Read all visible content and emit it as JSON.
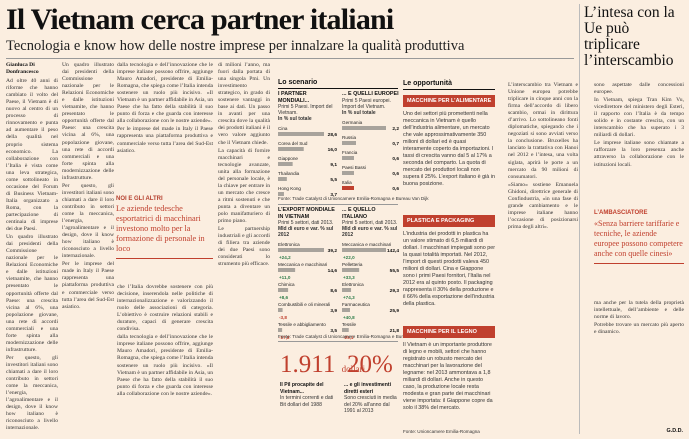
{
  "header": {
    "headline": "Il Vietnam cerca partner italiani",
    "subhead": "Tecnologia e know how delle nostre imprese per innalzare la qualità produttiva",
    "side_headline": "L’intesa con la Ue può triplicare l’interscambio"
  },
  "article": {
    "byline": "Gianluca Di Donfrancesco",
    "col1": [
      "Ad oltre 40 anni di riforme che hanno cambiato il volto del Paese, il Vietnam è di nuovo al centro di un processo di rinnovamento e punta ad aumentare il peso della qualità nel proprio sistema economico. La collaborazione con l’Italia è vista come una leva strategica, come sottolineato in occasione del Forum di Business Vietnam-Italia organizzato a Roma, con la partecipazione di centinaia di imprese dei due Paesi.",
      "Un quadro illustrato dai presidenti della Commissione nazionale per le Relazioni Economiche e dalle istituzioni vietnamite, che hanno presentato le opportunità offerte dal Paese: una crescita vicina al 6%, una popolazione giovane, una rete di accordi commerciali e una forte spinta alla modernizzazione delle infrastrutture.",
      "Per questo, gli investitori italiani sono chiamati a dare il loro contributo in settori come la meccanica, l’energia, l’agroalimentare e il design, dove il know how italiano è riconosciuto a livello internazionale."
    ],
    "col2": [
      "dalla tecnologia e dell’innovazione che le imprese italiane possono offrire, aggiunge Mauro Amadori, presidente di Emilia-Romagna, che spiega come l’Italia intenda sostenere un ruolo più incisivo. «Il Vietnam è un partner affidabile in Asia, un Paese che ha fatto della stabilità il suo punto di forza e che guarda con interesse alla collaborazione con le nostre aziende».",
      "Per le imprese del made in Italy il Paese rappresenta una piattaforma produttiva e commerciale verso tutta l’area del Sud-Est asiatico."
    ],
    "col3": [
      "di milioni l’anno, ma fuori dalla portata di una singola Pmi. Un investimento strategico, in grado di sostenere vantaggi in base ai dati. Un passo in avanti per una crescita dove la qualità dei prodotti italiani è il vero valore aggiunto che il Vietnam chiede.",
      "La capacità di fornire macchinari e tecnologie avanzate, unita alla formazione del personale locale, è la chiave per entrare in un mercato che cresce a ritmi sostenuti e che punta a diventare un polo manifatturiero di primo piano.",
      "Le partnership industriali e gli accordi di filiera tra aziende dei due Paesi sono considerati lo strumento più efficace."
    ],
    "quote_kicker": "NOI E GLI ALTRI",
    "quote": "Le aziende tedesche esportatrici di macchinari investono molto per la formazione di personale in loco",
    "col4": [
      "che l’Italia dovrebbe sostenere con più decisione, inserendola nelle politiche di internazionalizzazione e valorizzando il ruolo delle associazioni di categoria. L’obiettivo è costruire relazioni stabili e durature, capaci di generare crescita condivisa."
    ]
  },
  "scenario": {
    "title": "Lo scenario",
    "p1": {
      "h1": "I PARTNER MONDIALI...",
      "h2a": "Primi 5 Paesi. Import del Vietnam.",
      "h2b": "In % sul totale",
      "cats": [
        "Cina",
        "Corea del Sud",
        "Giappone",
        "Thailandia",
        "Hong Kong"
      ],
      "values": [
        28.6,
        16.0,
        9.1,
        5.5,
        3.7
      ]
    },
    "p2": {
      "h1": "... E QUELLI EUROPEI",
      "h2a": "Primi 5 Paesi europei. Import del Vietnam.",
      "h2b": "In % sul totale",
      "cats": [
        "Germania",
        "Russia",
        "Francia",
        "Paesi Bassi",
        "Italia"
      ],
      "values": [
        2.2,
        0.7,
        0.6,
        0.6,
        0.6
      ]
    },
    "src1": "Fonte: Trade Catalyst di Unioncamere Emilia-Romagna e Bureau Van Dijk",
    "p3": {
      "h1": "L’EXPORT MONDIALE IN VIETNAM",
      "h2a": "Primi 5 settori, dati 2013.",
      "h2b": "Mld di euro e var. % sul 2012",
      "cats": [
        "Elettronica",
        "Meccanica e macchinari",
        "Chimica",
        "Combustibili e oli minerali",
        "Tessile e abbigliamento"
      ],
      "values": [
        39.2,
        14.6,
        8.6,
        3.9,
        3.5
      ],
      "changes": [
        "+24,2",
        "+11,0",
        "+8,6",
        "-3,8",
        "-17,8"
      ]
    },
    "p4": {
      "h1": "... E QUELLO ITALIANO",
      "h2a": "Primi 5 settori, dati 2013.",
      "h2b": "Mld di euro e var. % sul 2012",
      "cats": [
        "Meccanica e macchinari",
        "Pelletteria",
        "Elettronica",
        "Farmaceutica",
        "Tessile"
      ],
      "values": [
        142.4,
        55.5,
        29.3,
        25.9,
        21.8
      ],
      "changes": [
        "+22,0",
        "+33,3",
        "+74,3",
        "+40,8",
        "-25,1"
      ]
    },
    "src2": "Fonte: Trade Catalyst di Unioncamere Emilia-Romagna e Bureau Van Dijk",
    "big1": "1.911",
    "big1_unit": "dollari",
    "cap1_bold": "Il Pil procapite del Vietnam...",
    "cap1": "In termini correnti e dati Bit dollari del 1988",
    "big2": "20%",
    "cap2_bold": "... e gli investimenti diretti esteri",
    "cap2": "Sono cresciuti in media del 20% all’anno dal 1991 al 2013"
  },
  "opportunities": {
    "title": "Le opportunità",
    "b1": "MACCHINE PER L’ALIMENTARE",
    "t1": "Uno dei settori più promettenti nella meccanica in Vietnam è quello dell’industria alimentare, un mercato che vale approssimativamente 350 milioni di dollari ed è quasi interamente coperto da importazioni. I tassi di crescita vanno dal 5 al 17% a seconda del comparto. La quota di mercato dei produttori locali non supera il 25%. L’export italiano è già in buona posizione.",
    "b2": "PLASTICA E PACKAGING",
    "t2": "L’industria dei prodotti in plastica ha un valore stimato di 6,5 miliardi di dollari. I macchinari impiegati sono per la quasi totalità importati. Nel 2012, l’import di questi prodotti valeva 450 milioni di dollari. Cina e Giappone sono i primi Paesi fornitori, l’Italia nel 2012 era al quinto posto. Il packaging rappresenta il 30% della produzione e il 66% della esportazione dell’industria della plastica.",
    "b3": "MACCHINE PER IL LEGNO",
    "t3": "Il Vietnam è un importante produttore di legno e mobili, settori che hanno registrato un robusto mercato dei macchinari per la lavorazione del legname: nel 2013 ammontava a 1,8 miliardi di dollari. Anche in questo caso, la produzione locale resta modesta e gran parte dei macchinari viene importata: il Giappone copre da solo il 38% del mercato.",
    "foot": "Fonte: Unioncamere Emilia-Romagna"
  },
  "side": {
    "col1": [
      "L’interscambio tra Vietnam e Unione europea potrebbe triplicare in cinque anni con la firma dell’accordo di libero scambio, ormai in dirittura d’arrivo. Lo sottolineano fonti diplomatiche, spiegando che i negoziati si sono avviati verso la conclusione. Bruxelles ha lanciato la trattativa con Hanoi nel 2012 e l’intesa, una volta siglata, aprirà le porte a un mercato da 90 milioni di consumatori.",
      "«Siamo» sostiene Emanuela Ghidoni, direttrice generale di Confindustria, «in una fase di grande cambiamento e le imprese italiane hanno l’occasione di posizionarsi prima degli altri»."
    ],
    "col2": [
      "sono aspettate dalle concessioni europee.",
      "In Vietnam, spiega Tran Kim Vu, vicedirettore del ministero degli Esteri, il rapporto con l’Italia è da tempo solido e in costante crescita, con un interscambio che ha superato i 3 miliardi di dollari.",
      "Le imprese italiane sono chiamate a rafforzare la loro presenza anche attraverso la collaborazione con le istituzioni locali."
    ],
    "amb_kicker": "L’AMBASCIATORE",
    "amb_quote": "«Senza barriere tariffarie e tecniche, le aziende europee possono competere anche con quelle cinesi»",
    "col2b": [
      "ma anche per la tutela della proprietà intellettuale, dell’ambiente e delle norme di lavoro.",
      "Potrebbe trovare un mercato più aperto e dinamico."
    ],
    "signature": "G.D.D."
  }
}
